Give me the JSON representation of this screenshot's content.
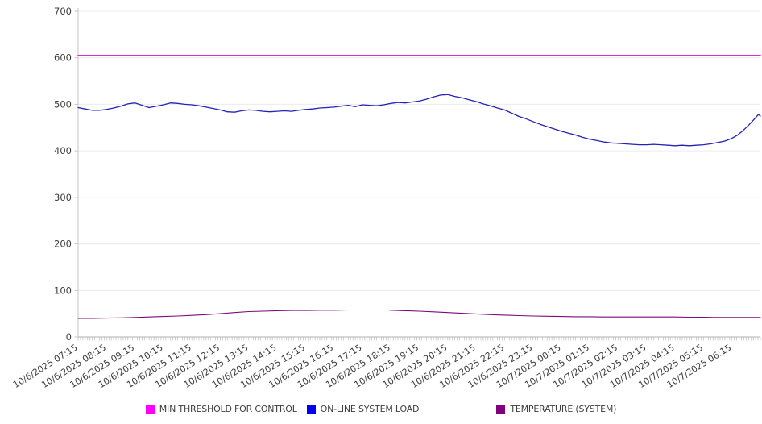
{
  "chart_data": {
    "type": "line",
    "title": "",
    "x_axis": {
      "labels": [
        "10/6/2025 07:15",
        "10/6/2025 08:15",
        "10/6/2025 09:15",
        "10/6/2025 10:15",
        "10/6/2025 11:15",
        "10/6/2025 12:15",
        "10/6/2025 13:15",
        "10/6/2025 14:15",
        "10/6/2025 15:15",
        "10/6/2025 16:15",
        "10/6/2025 17:15",
        "10/6/2025 18:15",
        "10/6/2025 19:15",
        "10/6/2025 20:15",
        "10/6/2025 21:15",
        "10/6/2025 22:15",
        "10/6/2025 23:15",
        "10/7/2025 00:15",
        "10/7/2025 01:15",
        "10/7/2025 02:15",
        "10/7/2025 03:15",
        "10/7/2025 04:15",
        "10/7/2025 05:15",
        "10/7/2025 06:15"
      ],
      "label_rotation_deg": -32,
      "minor_tick_minutes": 5,
      "hours_span": 24
    },
    "y_axis": {
      "min": 0,
      "max": 700,
      "tick_step": 100,
      "ticks": [
        0,
        100,
        200,
        300,
        400,
        500,
        600,
        700
      ]
    },
    "grid": true,
    "legend_position": "bottom",
    "series": [
      {
        "name": "MIN THRESHOLD FOR CONTROL",
        "color": "#ff00ff",
        "line_color": "#d829d8",
        "line_width": 1.7,
        "points": [
          [
            0,
            605
          ],
          [
            24,
            605
          ]
        ]
      },
      {
        "name": "ON-LINE SYSTEM LOAD",
        "color": "#0000ee",
        "line_color": "#2323b4",
        "line_width": 1.3,
        "points": [
          [
            0,
            493
          ],
          [
            0.25,
            490
          ],
          [
            0.5,
            487
          ],
          [
            0.75,
            487
          ],
          [
            1,
            489
          ],
          [
            1.25,
            492
          ],
          [
            1.5,
            496
          ],
          [
            1.75,
            501
          ],
          [
            2,
            503
          ],
          [
            2.25,
            498
          ],
          [
            2.5,
            493
          ],
          [
            2.75,
            496
          ],
          [
            3,
            499
          ],
          [
            3.25,
            503
          ],
          [
            3.5,
            502
          ],
          [
            3.75,
            500
          ],
          [
            4,
            499
          ],
          [
            4.25,
            497
          ],
          [
            4.5,
            494
          ],
          [
            4.75,
            491
          ],
          [
            5,
            488
          ],
          [
            5.25,
            484
          ],
          [
            5.5,
            483
          ],
          [
            5.75,
            486
          ],
          [
            6,
            488
          ],
          [
            6.25,
            487
          ],
          [
            6.5,
            485
          ],
          [
            6.75,
            484
          ],
          [
            7,
            485
          ],
          [
            7.25,
            486
          ],
          [
            7.5,
            485
          ],
          [
            7.75,
            487
          ],
          [
            8,
            489
          ],
          [
            8.25,
            490
          ],
          [
            8.5,
            492
          ],
          [
            8.75,
            493
          ],
          [
            9,
            494
          ],
          [
            9.25,
            496
          ],
          [
            9.5,
            498
          ],
          [
            9.75,
            495
          ],
          [
            10,
            499
          ],
          [
            10.25,
            498
          ],
          [
            10.5,
            497
          ],
          [
            10.75,
            499
          ],
          [
            11,
            502
          ],
          [
            11.25,
            504
          ],
          [
            11.5,
            503
          ],
          [
            11.75,
            505
          ],
          [
            12,
            507
          ],
          [
            12.25,
            511
          ],
          [
            12.5,
            516
          ],
          [
            12.75,
            520
          ],
          [
            13,
            521
          ],
          [
            13.25,
            517
          ],
          [
            13.5,
            514
          ],
          [
            13.75,
            510
          ],
          [
            14,
            506
          ],
          [
            14.25,
            501
          ],
          [
            14.5,
            497
          ],
          [
            14.75,
            492
          ],
          [
            15,
            488
          ],
          [
            15.25,
            481
          ],
          [
            15.5,
            474
          ],
          [
            15.75,
            469
          ],
          [
            16,
            463
          ],
          [
            16.25,
            457
          ],
          [
            16.5,
            452
          ],
          [
            16.75,
            447
          ],
          [
            17,
            442
          ],
          [
            17.25,
            438
          ],
          [
            17.5,
            434
          ],
          [
            17.75,
            429
          ],
          [
            18,
            425
          ],
          [
            18.25,
            422
          ],
          [
            18.5,
            419
          ],
          [
            18.75,
            417
          ],
          [
            19,
            416
          ],
          [
            19.25,
            415
          ],
          [
            19.5,
            414
          ],
          [
            19.75,
            413
          ],
          [
            20,
            413
          ],
          [
            20.25,
            414
          ],
          [
            20.5,
            413
          ],
          [
            20.75,
            412
          ],
          [
            21,
            411
          ],
          [
            21.25,
            412
          ],
          [
            21.5,
            411
          ],
          [
            21.75,
            412
          ],
          [
            22,
            413
          ],
          [
            22.25,
            415
          ],
          [
            22.5,
            418
          ],
          [
            22.75,
            421
          ],
          [
            23,
            427
          ],
          [
            23.2,
            434
          ],
          [
            23.4,
            444
          ],
          [
            23.6,
            456
          ],
          [
            23.8,
            469
          ],
          [
            23.93,
            478
          ],
          [
            24,
            475
          ]
        ]
      },
      {
        "name": "TEMPERATURE (SYSTEM)",
        "color": "#800080",
        "line_color": "#7c0c7c",
        "line_width": 1.1,
        "points": [
          [
            0,
            40
          ],
          [
            0.5,
            40
          ],
          [
            1,
            40.5
          ],
          [
            1.5,
            41
          ],
          [
            2,
            42
          ],
          [
            2.5,
            43
          ],
          [
            3,
            44
          ],
          [
            3.5,
            45
          ],
          [
            4,
            46.5
          ],
          [
            4.5,
            48
          ],
          [
            5,
            50
          ],
          [
            5.5,
            52.5
          ],
          [
            6,
            54.5
          ],
          [
            6.5,
            55.5
          ],
          [
            7,
            56.5
          ],
          [
            7.5,
            57
          ],
          [
            8,
            57
          ],
          [
            8.5,
            57.5
          ],
          [
            9,
            57.5
          ],
          [
            9.5,
            58
          ],
          [
            10,
            58
          ],
          [
            10.5,
            58
          ],
          [
            10.9,
            58
          ],
          [
            11,
            57.5
          ],
          [
            11.5,
            56.5
          ],
          [
            12,
            55.5
          ],
          [
            12.5,
            54
          ],
          [
            13,
            52.5
          ],
          [
            13.5,
            51
          ],
          [
            14,
            49.5
          ],
          [
            14.5,
            48
          ],
          [
            15,
            47
          ],
          [
            15.5,
            46
          ],
          [
            16,
            45
          ],
          [
            16.5,
            44.5
          ],
          [
            17,
            44
          ],
          [
            17.5,
            43.5
          ],
          [
            18,
            43.5
          ],
          [
            18.5,
            43
          ],
          [
            19,
            43
          ],
          [
            20,
            43
          ],
          [
            21,
            43
          ],
          [
            21.5,
            42.5
          ],
          [
            22,
            42.5
          ],
          [
            22.4,
            42
          ],
          [
            23,
            42
          ],
          [
            24,
            42
          ]
        ]
      }
    ]
  },
  "colors": {
    "background": "#ffffff",
    "grid": "#ececec",
    "axis": "#c6c6c6",
    "axis_dark": "#b2b2b2",
    "tick": "#c6c6c6",
    "text": "#3c3c3c"
  }
}
